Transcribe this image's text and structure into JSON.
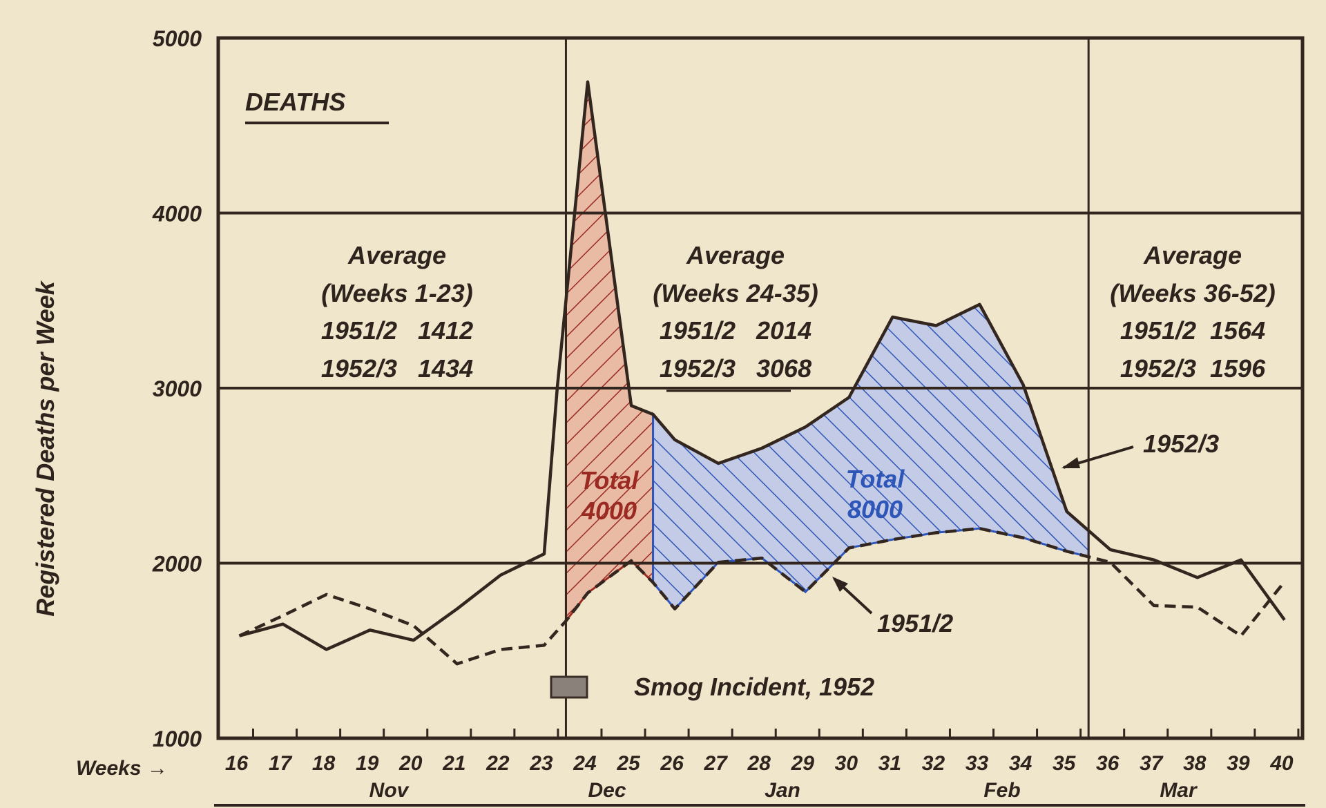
{
  "chart_data": {
    "type": "line",
    "title": "DEATHS",
    "ylabel": "Registered Deaths per Week",
    "xlabel": "Weeks",
    "ylim": [
      1000,
      5000
    ],
    "xlim": [
      16,
      40
    ],
    "yticks": [
      "1000",
      "2000",
      "3000",
      "4000",
      "5000"
    ],
    "xticks": [
      "16",
      "17",
      "18",
      "19",
      "20",
      "21",
      "22",
      "23",
      "24",
      "25",
      "26",
      "27",
      "28",
      "29",
      "30",
      "31",
      "32",
      "33",
      "34",
      "35",
      "36",
      "37",
      "38",
      "39",
      "40"
    ],
    "months": [
      "Nov",
      "Dec",
      "Jan",
      "Feb",
      "Mar"
    ],
    "grid": true,
    "series": [
      {
        "name": "1952/3",
        "style": "solid",
        "x": [
          16,
          17,
          18,
          19,
          20,
          21,
          22,
          23,
          23.3,
          24,
          25,
          25.5,
          26,
          27,
          28,
          29,
          30,
          31,
          32,
          33,
          34,
          35,
          36,
          37,
          38,
          39,
          40
        ],
        "values": [
          1585,
          1652,
          1507,
          1618,
          1560,
          1739,
          1932,
          2053,
          3000,
          4749,
          2900,
          2850,
          2705,
          2570,
          2657,
          2778,
          2947,
          3406,
          3357,
          3478,
          3019,
          2295,
          2077,
          2019,
          1918,
          2019,
          1676
        ]
      },
      {
        "name": "1951/2",
        "style": "dashed",
        "x": [
          16,
          17,
          18,
          19,
          20,
          21,
          22,
          23,
          23.5,
          24,
          25,
          25.5,
          26,
          27,
          28,
          29,
          30,
          31,
          32,
          33,
          34,
          35,
          36,
          37,
          38,
          39,
          40
        ],
        "values": [
          1585,
          1700,
          1821,
          1739,
          1643,
          1425,
          1507,
          1531,
          1670,
          1830,
          2014,
          1890,
          1739,
          2005,
          2029,
          1836,
          2087,
          2135,
          2174,
          2198,
          2145,
          2068,
          2005,
          1758,
          1749,
          1585,
          1894
        ]
      }
    ],
    "shaded_regions": [
      {
        "from_week": 23.5,
        "to_week": 25.5,
        "label": [
          "Total",
          "4000"
        ],
        "color": "#e9bba5",
        "hatch": "#9a2a22"
      },
      {
        "from_week": 25.5,
        "to_week": 35.5,
        "label": [
          "Total",
          "8000"
        ],
        "color": "#c3cbe6",
        "hatch": "#2e56b8"
      }
    ],
    "dividers_at_week": [
      23.5,
      35.5
    ],
    "annotations": {
      "period1": [
        "Average",
        "(Weeks 1-23)",
        "1951/2   1412",
        "1952/3   1434"
      ],
      "period2": [
        "Average",
        "(Weeks 24-35)",
        "1951/2   2014",
        "1952/3   3068"
      ],
      "period3": [
        "Average",
        "(Weeks 36-52)",
        "1951/2  1564",
        "1952/3  1596"
      ],
      "series_label_1952": "1952/3",
      "series_label_1951": "1951/2",
      "smog": "Smog Incident, 1952",
      "weeks_arrow": "Weeks →"
    },
    "colors": {
      "background": "#efe6cc",
      "ink": "#33261f"
    }
  }
}
